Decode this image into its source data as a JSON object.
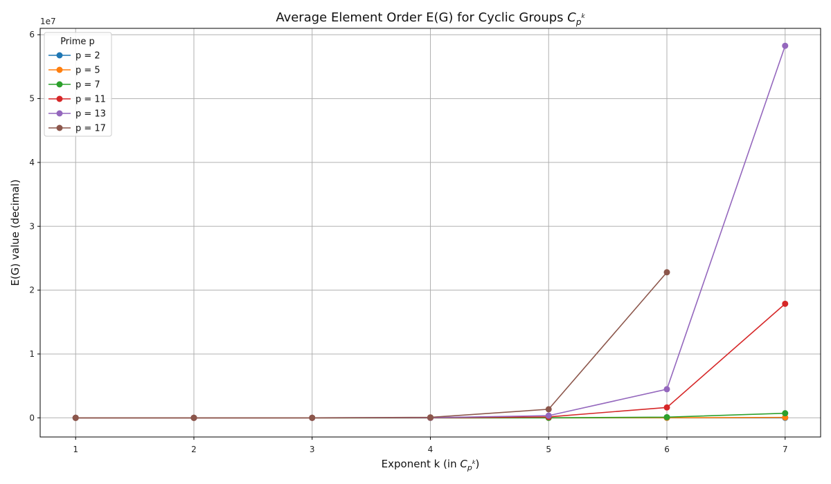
{
  "chart_data": {
    "type": "line",
    "title_prefix": "Average Element Order E(G) for Cyclic Groups ",
    "title_math": {
      "base": "C",
      "sub": "p",
      "sup": "k"
    },
    "xlabel_prefix": "Exponent k (in ",
    "xlabel_suffix": ")",
    "ylabel": "E(G) value (decimal)",
    "y_offset_label": "1e7",
    "y_scale": 10000000,
    "x_ticks": [
      1,
      2,
      3,
      4,
      5,
      6,
      7
    ],
    "y_ticks": [
      0,
      1,
      2,
      3,
      4,
      5,
      6
    ],
    "xlim": [
      0.7,
      7.3
    ],
    "ylim": [
      -3000000,
      61000000
    ],
    "grid": true,
    "legend_title": "Prime p",
    "legend_position": "top-left",
    "series": [
      {
        "name": "p = 2",
        "color": "#1f77b4",
        "x": [
          1,
          2,
          3,
          4,
          5,
          6,
          7
        ],
        "y": [
          1.5,
          2.75,
          5.375,
          10.69,
          21.34,
          42.67,
          85.33
        ]
      },
      {
        "name": "p = 5",
        "color": "#ff7f0e",
        "x": [
          1,
          2,
          3,
          4,
          5,
          6,
          7
        ],
        "y": [
          4.2,
          20.84,
          104.2,
          520.8,
          2604,
          13020,
          65104
        ]
      },
      {
        "name": "p = 7",
        "color": "#2ca02c",
        "x": [
          1,
          2,
          3,
          4,
          5,
          6,
          7
        ],
        "y": [
          6.14,
          42.88,
          300.1,
          2101,
          14706,
          102942,
          720600
        ]
      },
      {
        "name": "p = 11",
        "color": "#d62728",
        "x": [
          1,
          2,
          3,
          4,
          5,
          6,
          7
        ],
        "y": [
          10.09,
          110.9,
          1220,
          13421,
          147631,
          1623941,
          17863350
        ]
      },
      {
        "name": "p = 13",
        "color": "#9467bd",
        "x": [
          1,
          2,
          3,
          4,
          5,
          6,
          7
        ],
        "y": [
          12.08,
          156.9,
          2040,
          26521,
          344773,
          4482049,
          58266640
        ]
      },
      {
        "name": "p = 17",
        "color": "#8c564b",
        "x": [
          1,
          2,
          3,
          4,
          5,
          6
        ],
        "y": [
          16.06,
          272.9,
          4640,
          78881,
          1340977,
          22796617
        ]
      }
    ]
  }
}
